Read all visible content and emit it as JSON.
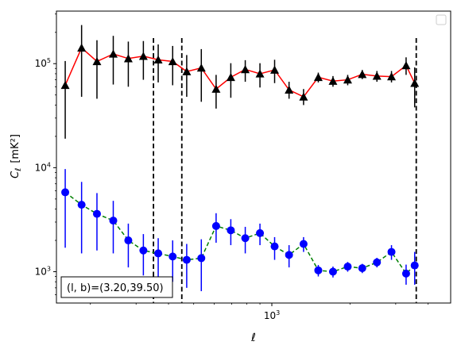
{
  "chart_data": {
    "type": "scatter",
    "title": "",
    "xlabel": "ℓ",
    "ylabel_main": "C",
    "ylabel_sub": "ℓ",
    "ylabel_unit": "[mK²]",
    "x_scale": "log",
    "y_scale": "log",
    "xlim": [
      148,
      4885
    ],
    "ylim": [
      500,
      320000
    ],
    "x_ticks": [
      {
        "value": 1000,
        "base": "10",
        "exp": "3"
      }
    ],
    "y_ticks": [
      {
        "value": 1000,
        "base": "10",
        "exp": "3"
      },
      {
        "value": 10000,
        "base": "10",
        "exp": "4"
      },
      {
        "value": 100000,
        "base": "10",
        "exp": "5"
      }
    ],
    "grid": false,
    "legend": "top-right (empty)",
    "vlines": [
      350,
      450,
      3600
    ],
    "annotation": "(l, b)=(3.20,39.50)",
    "annotation_position": "bottom-left",
    "series": [
      {
        "marker": "triangle",
        "marker_color": "#000000",
        "line_color": "#ff0000",
        "line_style": "solid",
        "errorbar_color": "#000000",
        "points": [
          {
            "x": 160,
            "y": 62000,
            "lo": 19000,
            "hi": 106000
          },
          {
            "x": 185,
            "y": 142000,
            "lo": 48000,
            "hi": 235000
          },
          {
            "x": 212,
            "y": 105000,
            "lo": 46000,
            "hi": 168000
          },
          {
            "x": 245,
            "y": 124000,
            "lo": 63000,
            "hi": 185000
          },
          {
            "x": 280,
            "y": 112000,
            "lo": 60000,
            "hi": 163000
          },
          {
            "x": 320,
            "y": 118000,
            "lo": 70000,
            "hi": 165000
          },
          {
            "x": 365,
            "y": 109000,
            "lo": 66000,
            "hi": 153000
          },
          {
            "x": 415,
            "y": 105000,
            "lo": 62000,
            "hi": 148000
          },
          {
            "x": 470,
            "y": 84000,
            "lo": 48000,
            "hi": 121000
          },
          {
            "x": 535,
            "y": 91000,
            "lo": 43000,
            "hi": 138000
          },
          {
            "x": 610,
            "y": 57000,
            "lo": 37000,
            "hi": 78000
          },
          {
            "x": 695,
            "y": 74000,
            "lo": 47000,
            "hi": 101000
          },
          {
            "x": 790,
            "y": 88000,
            "lo": 67000,
            "hi": 108000
          },
          {
            "x": 900,
            "y": 80000,
            "lo": 59000,
            "hi": 101000
          },
          {
            "x": 1025,
            "y": 87000,
            "lo": 65000,
            "hi": 109000
          },
          {
            "x": 1165,
            "y": 56000,
            "lo": 46000,
            "hi": 67000
          },
          {
            "x": 1325,
            "y": 48000,
            "lo": 40000,
            "hi": 57000
          },
          {
            "x": 1510,
            "y": 74000,
            "lo": 66000,
            "hi": 82000
          },
          {
            "x": 1720,
            "y": 68000,
            "lo": 60000,
            "hi": 76000
          },
          {
            "x": 1960,
            "y": 70000,
            "lo": 62000,
            "hi": 78000
          },
          {
            "x": 2230,
            "y": 79000,
            "lo": 71000,
            "hi": 87000
          },
          {
            "x": 2540,
            "y": 76000,
            "lo": 67000,
            "hi": 85000
          },
          {
            "x": 2890,
            "y": 75000,
            "lo": 66000,
            "hi": 85000
          },
          {
            "x": 3290,
            "y": 96000,
            "lo": 78000,
            "hi": 115000
          },
          {
            "x": 3550,
            "y": 65000,
            "lo": 38000,
            "hi": 92000
          }
        ]
      },
      {
        "marker": "circle",
        "marker_color": "#0000ff",
        "line_color": "#008000",
        "line_style": "dashed",
        "errorbar_color": "#0000ff",
        "points": [
          {
            "x": 160,
            "y": 5800,
            "lo": 1700,
            "hi": 9700
          },
          {
            "x": 185,
            "y": 4400,
            "lo": 1500,
            "hi": 7300
          },
          {
            "x": 212,
            "y": 3600,
            "lo": 1600,
            "hi": 5700
          },
          {
            "x": 245,
            "y": 3100,
            "lo": 1500,
            "hi": 4800
          },
          {
            "x": 280,
            "y": 2000,
            "lo": 1100,
            "hi": 2900
          },
          {
            "x": 320,
            "y": 1600,
            "lo": 920,
            "hi": 2300
          },
          {
            "x": 365,
            "y": 1500,
            "lo": 880,
            "hi": 2100
          },
          {
            "x": 415,
            "y": 1400,
            "lo": 800,
            "hi": 2000
          },
          {
            "x": 470,
            "y": 1300,
            "lo": 700,
            "hi": 1850
          },
          {
            "x": 535,
            "y": 1350,
            "lo": 650,
            "hi": 2050
          },
          {
            "x": 610,
            "y": 2750,
            "lo": 1900,
            "hi": 3650
          },
          {
            "x": 695,
            "y": 2500,
            "lo": 1800,
            "hi": 3200
          },
          {
            "x": 790,
            "y": 2100,
            "lo": 1500,
            "hi": 2700
          },
          {
            "x": 900,
            "y": 2350,
            "lo": 1800,
            "hi": 2900
          },
          {
            "x": 1025,
            "y": 1750,
            "lo": 1300,
            "hi": 2150
          },
          {
            "x": 1165,
            "y": 1450,
            "lo": 1100,
            "hi": 1800
          },
          {
            "x": 1325,
            "y": 1850,
            "lo": 1550,
            "hi": 2150
          },
          {
            "x": 1510,
            "y": 1030,
            "lo": 900,
            "hi": 1160
          },
          {
            "x": 1720,
            "y": 1000,
            "lo": 880,
            "hi": 1120
          },
          {
            "x": 1960,
            "y": 1120,
            "lo": 1000,
            "hi": 1240
          },
          {
            "x": 2230,
            "y": 1080,
            "lo": 970,
            "hi": 1190
          },
          {
            "x": 2540,
            "y": 1230,
            "lo": 1100,
            "hi": 1360
          },
          {
            "x": 2890,
            "y": 1550,
            "lo": 1300,
            "hi": 1800
          },
          {
            "x": 3290,
            "y": 960,
            "lo": 750,
            "hi": 1170
          },
          {
            "x": 3550,
            "y": 1150,
            "lo": 750,
            "hi": 1550
          }
        ]
      }
    ]
  }
}
